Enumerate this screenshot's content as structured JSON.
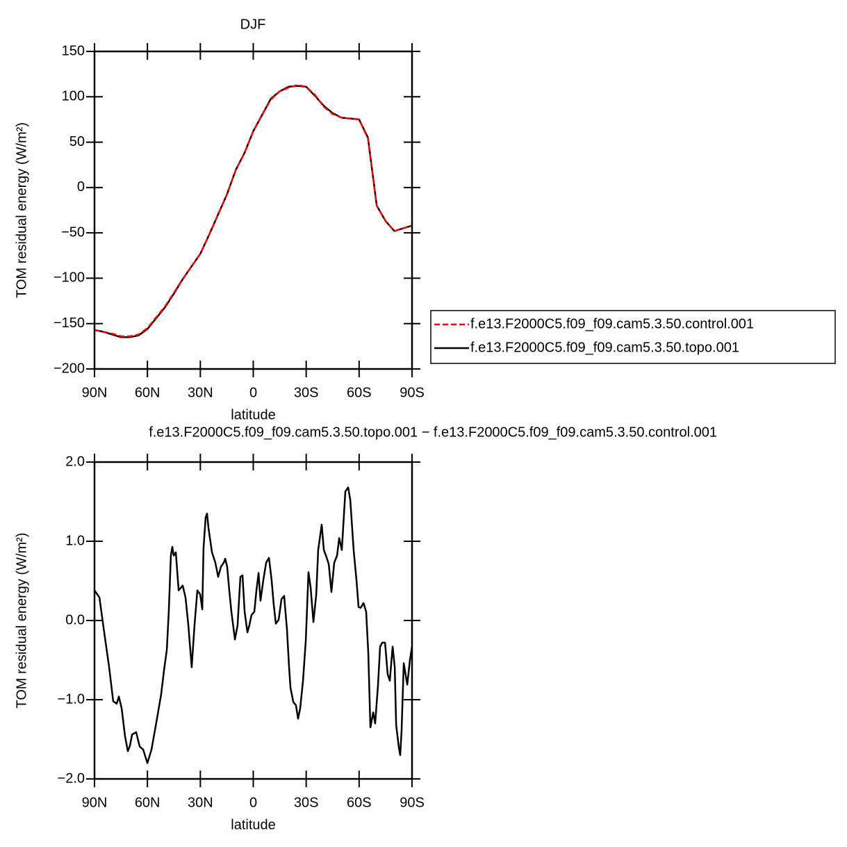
{
  "chart_data": [
    {
      "type": "line",
      "title": "DJF",
      "x_label": "latitude",
      "y_label": "TOM residual energy (W/m²)",
      "x": [
        90,
        85,
        80,
        75,
        70,
        65,
        60,
        55,
        50,
        45,
        40,
        35,
        30,
        25,
        20,
        15,
        10,
        5,
        0,
        -5,
        -10,
        -15,
        -20,
        -25,
        -30,
        -35,
        -40,
        -45,
        -50,
        -55,
        -60,
        -65,
        -70,
        -75,
        -80,
        -85,
        -90
      ],
      "series": [
        {
          "name": "f.e13.F2000C5.f09_f09.cam5.3.50.control.001",
          "color": "#ff0000",
          "dash": true,
          "values": [
            -157,
            -159,
            -161,
            -164,
            -164,
            -162,
            -155,
            -143,
            -131,
            -116,
            -101,
            -87,
            -73,
            -52,
            -30,
            -8,
            19,
            38,
            62,
            80,
            97,
            106,
            110,
            113,
            111,
            102,
            89,
            81,
            77,
            76,
            75,
            54,
            -20,
            -37,
            -48,
            -45,
            -42
          ]
        },
        {
          "name": "f.e13.F2000C5.f09_f09.cam5.3.50.topo.001",
          "color": "#000000",
          "dash": false,
          "values": [
            -157,
            -159,
            -162,
            -165,
            -165,
            -163,
            -156,
            -144,
            -132,
            -117,
            -101,
            -87,
            -73,
            -52,
            -30,
            -8,
            19,
            38,
            62,
            80,
            98,
            106,
            111,
            112,
            111,
            101,
            90,
            82,
            77,
            76,
            75,
            55,
            -20,
            -37,
            -48,
            -45,
            -42
          ]
        }
      ],
      "xlim": [
        90,
        -90
      ],
      "xticks": [
        {
          "value": 90,
          "label": "90N"
        },
        {
          "value": 60,
          "label": "60N"
        },
        {
          "value": 30,
          "label": "30N"
        },
        0,
        {
          "value": -30,
          "label": "30S"
        },
        {
          "value": -60,
          "label": "60S"
        },
        {
          "value": -90,
          "label": "90S"
        }
      ],
      "ylim": [
        -200,
        150
      ],
      "yticks": [
        {
          "value": -200,
          "label": "−200"
        },
        {
          "value": -150,
          "label": "−150"
        },
        {
          "value": -100,
          "label": "−100"
        },
        {
          "value": -50,
          "label": "−50"
        },
        0,
        50,
        100,
        150
      ],
      "legend": "right"
    },
    {
      "type": "line",
      "title": "f.e13.F2000C5.f09_f09.cam5.3.50.topo.001 − f.e13.F2000C5.f09_f09.cam5.3.50.control.001",
      "x_label": "latitude",
      "y_label": "TOM residual energy (W/m²)",
      "x": [
        90,
        87.2,
        84.5,
        81.7,
        79.4,
        77.4,
        76.2,
        74.6,
        72.7,
        71.1,
        69.9,
        68.7,
        66.4,
        64.4,
        62.4,
        60,
        57.7,
        54.9,
        52.2,
        50.6,
        49,
        47.9,
        46.7,
        45.9,
        45.1,
        43.9,
        42.3,
        40,
        38.4,
        36.8,
        34.9,
        33.3,
        31.7,
        30.1,
        28.9,
        28.2,
        27,
        26.2,
        25.4,
        23.4,
        21.5,
        19.9,
        18.3,
        16.7,
        15.9,
        14.8,
        13.6,
        12.4,
        10.4,
        8.9,
        7.3,
        6.1,
        4.9,
        3.3,
        2.2,
        1,
        -0.6,
        -1.8,
        -3,
        -4.1,
        -5.7,
        -7.3,
        -8.9,
        -10.4,
        -11.6,
        -12.8,
        -14.4,
        -16,
        -17.5,
        -19.1,
        -20.3,
        -21.1,
        -22.7,
        -24.2,
        -25.4,
        -26.6,
        -28.2,
        -29.8,
        -31.3,
        -32.5,
        -34.1,
        -35.7,
        -36.8,
        -38.8,
        -40,
        -41.2,
        -42.8,
        -44.3,
        -45.9,
        -47.5,
        -48.7,
        -50.2,
        -52.2,
        -53.8,
        -55,
        -56.9,
        -58.5,
        -59.7,
        -60.9,
        -62.5,
        -64,
        -65.2,
        -66.4,
        -68,
        -69.1,
        -70.7,
        -71.9,
        -73.1,
        -74.7,
        -76.2,
        -77.4,
        -79,
        -80.2,
        -81,
        -82.5,
        -83.3,
        -84.1,
        -85.3,
        -87.3,
        -88.8,
        -90
      ],
      "series": [
        {
          "color": "#000000",
          "values": [
            0.38,
            0.29,
            -0.15,
            -0.59,
            -1.02,
            -1.05,
            -0.96,
            -1.11,
            -1.46,
            -1.65,
            -1.58,
            -1.44,
            -1.41,
            -1.59,
            -1.63,
            -1.8,
            -1.63,
            -1.28,
            -0.93,
            -0.63,
            -0.37,
            0.11,
            0.82,
            0.93,
            0.82,
            0.86,
            0.38,
            0.44,
            0.29,
            -0.06,
            -0.59,
            -0.06,
            0.38,
            0.33,
            0.14,
            0.91,
            1.3,
            1.35,
            1.17,
            0.86,
            0.73,
            0.55,
            0.68,
            0.73,
            0.78,
            0.68,
            0.38,
            0.11,
            -0.24,
            -0.06,
            0.55,
            0.57,
            0.11,
            -0.15,
            -0.06,
            0.07,
            0.11,
            0.38,
            0.6,
            0.25,
            0.51,
            0.73,
            0.79,
            0.51,
            0.2,
            -0.04,
            0.01,
            0.27,
            0.31,
            -0.11,
            -0.59,
            -0.85,
            -1.03,
            -1.07,
            -1.24,
            -1.11,
            -0.76,
            -0.24,
            0.61,
            0.42,
            -0.02,
            0.33,
            0.89,
            1.21,
            0.89,
            0.82,
            0.71,
            0.36,
            0.73,
            0.82,
            1.04,
            0.89,
            1.63,
            1.68,
            1.52,
            0.89,
            0.51,
            0.17,
            0.16,
            0.22,
            0.11,
            -0.41,
            -1.35,
            -1.16,
            -1.3,
            -0.82,
            -0.33,
            -0.28,
            -0.28,
            -0.68,
            -0.76,
            -0.33,
            -0.59,
            -1.32,
            -1.6,
            -1.7,
            -1.38,
            -0.54,
            -0.81,
            -0.5,
            -0.33
          ]
        }
      ],
      "xlim": [
        90,
        -90
      ],
      "xticks": [
        {
          "value": 90,
          "label": "90N"
        },
        {
          "value": 60,
          "label": "60N"
        },
        {
          "value": 30,
          "label": "30N"
        },
        0,
        {
          "value": -30,
          "label": "30S"
        },
        {
          "value": -60,
          "label": "60S"
        },
        {
          "value": -90,
          "label": "90S"
        }
      ],
      "ylim": [
        -2,
        2
      ],
      "yticks": [
        {
          "value": -2,
          "label": "−2.0"
        },
        {
          "value": -1,
          "label": "−1.0"
        },
        {
          "value": 0,
          "label": "0.0"
        },
        {
          "value": 1,
          "label": "1.0"
        },
        {
          "value": 2,
          "label": "2.0"
        }
      ]
    }
  ]
}
